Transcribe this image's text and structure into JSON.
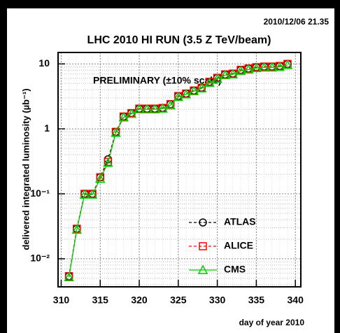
{
  "chart_data": {
    "type": "line",
    "timestamp": "2010/12/06  21.35",
    "title": "LHC 2010 HI RUN (3.5 Z TeV/beam)",
    "annotation": "PRELIMINARY (±10% scale)",
    "xlabel": "day of year 2010",
    "ylabel": "delivered integrated luminosity (µb⁻¹)",
    "yscale": "log",
    "grid": true,
    "x": [
      311,
      312,
      313,
      314,
      315,
      316,
      317,
      318,
      319,
      320,
      321,
      322,
      323,
      324,
      325,
      326,
      327,
      328,
      329,
      330,
      331,
      332,
      333,
      334,
      335,
      336,
      337,
      338,
      339
    ],
    "series": [
      {
        "name": "ATLAS",
        "color": "#000000",
        "marker": "circle",
        "dash": true,
        "values": [
          0.0054,
          0.029,
          0.1,
          0.1,
          0.18,
          0.34,
          0.9,
          1.55,
          1.75,
          2.05,
          2.05,
          2.05,
          2.1,
          2.4,
          3.2,
          3.5,
          3.9,
          4.3,
          5.3,
          6.1,
          6.9,
          7.1,
          8.1,
          8.5,
          8.9,
          9.1,
          9.1,
          9.3,
          10
        ]
      },
      {
        "name": "ALICE",
        "color": "#ff0000",
        "marker": "square",
        "dash": true,
        "values": [
          0.0054,
          0.029,
          0.1,
          0.1,
          0.18,
          0.31,
          0.9,
          1.55,
          1.75,
          2.05,
          2.05,
          2.05,
          2.1,
          2.4,
          3.2,
          3.5,
          3.9,
          4.3,
          5.3,
          6.1,
          6.9,
          7.1,
          8.1,
          8.5,
          8.9,
          9.1,
          9.1,
          9.3,
          10
        ]
      },
      {
        "name": "CMS",
        "color": "#00cc00",
        "marker": "triangle",
        "dash": false,
        "values": [
          0.0052,
          0.028,
          0.097,
          0.097,
          0.17,
          0.3,
          0.87,
          1.5,
          1.7,
          2.0,
          2.0,
          2.0,
          2.05,
          2.3,
          3.1,
          3.4,
          3.8,
          4.2,
          5.1,
          5.9,
          6.7,
          6.9,
          7.8,
          8.2,
          8.6,
          8.8,
          8.8,
          9.0,
          9.6
        ]
      }
    ],
    "xlim": [
      309.6,
      340.7
    ],
    "xticks": [
      310,
      315,
      320,
      325,
      330,
      335,
      340
    ],
    "ylim": [
      0.0037,
      15
    ],
    "yticks": [
      {
        "value": 0.01,
        "label": "10⁻²"
      },
      {
        "value": 0.1,
        "label": "10⁻¹"
      },
      1,
      10
    ]
  }
}
